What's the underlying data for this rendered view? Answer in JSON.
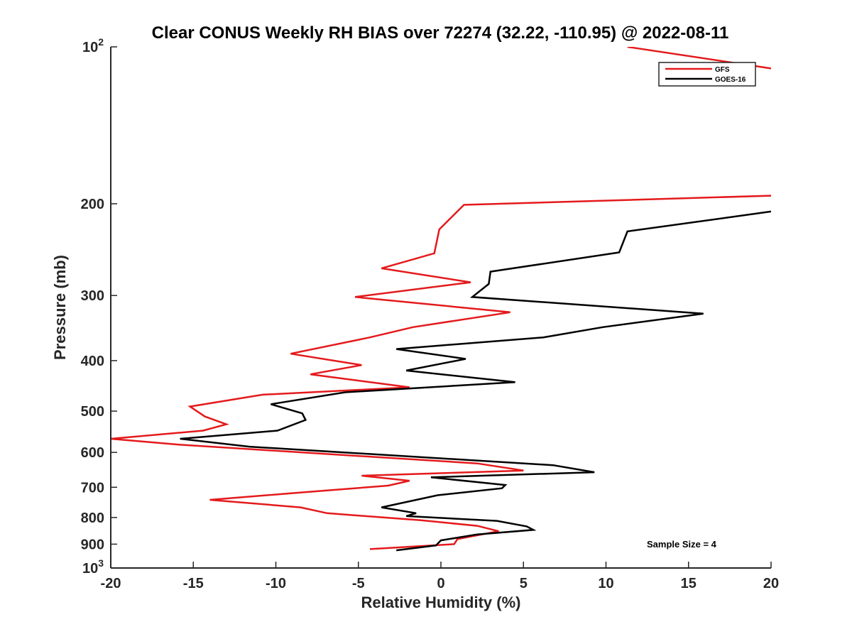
{
  "chart_data": {
    "type": "line",
    "title": "Clear CONUS Weekly RH BIAS over 72274 (32.22, -110.95) @ 2022-08-11",
    "xlabel": "Relative Humidity (%)",
    "ylabel": "Pressure (mb)",
    "xlim": [
      -20,
      20
    ],
    "ylim": [
      100,
      1000
    ],
    "y_scale": "log",
    "y_reversed": true,
    "x_ticks": [
      "-20",
      "-15",
      "-10",
      "-5",
      "0",
      "5",
      "10",
      "15",
      "20"
    ],
    "y_ticks": [
      {
        "value": 100,
        "base": "10",
        "exp": "2"
      },
      {
        "value": 200,
        "label": "200"
      },
      {
        "value": 300,
        "label": "300"
      },
      {
        "value": 400,
        "label": "400"
      },
      {
        "value": 500,
        "label": "500"
      },
      {
        "value": 600,
        "label": "600"
      },
      {
        "value": 700,
        "label": "700"
      },
      {
        "value": 800,
        "label": "800"
      },
      {
        "value": 900,
        "label": "900"
      },
      {
        "value": 1000,
        "base": "10",
        "exp": "3"
      }
    ],
    "grid": false,
    "legend_position": "top-right",
    "annotation": "Sample Size = 4",
    "series": [
      {
        "name": "GFS",
        "color": "#e41a1c",
        "points": [
          [
            -4.3,
            920
          ],
          [
            0.8,
            900
          ],
          [
            1.0,
            880
          ],
          [
            3.5,
            850
          ],
          [
            2.2,
            830
          ],
          [
            -1.2,
            810
          ],
          [
            -6.9,
            785
          ],
          [
            -8.5,
            765
          ],
          [
            -14.0,
            740
          ],
          [
            -8.2,
            715
          ],
          [
            -3.2,
            695
          ],
          [
            -1.9,
            680
          ],
          [
            -4.8,
            665
          ],
          [
            5.0,
            650
          ],
          [
            2.2,
            630
          ],
          [
            -15.8,
            580
          ],
          [
            -20.0,
            565
          ],
          [
            -14.4,
            545
          ],
          [
            -13.0,
            530
          ],
          [
            -14.3,
            512
          ],
          [
            -15.2,
            490
          ],
          [
            -10.8,
            465
          ],
          [
            -1.9,
            450
          ],
          [
            -7.9,
            425
          ],
          [
            -4.8,
            408
          ],
          [
            -9.1,
            388
          ],
          [
            -4.3,
            361
          ],
          [
            -1.7,
            345
          ],
          [
            4.2,
            323
          ],
          [
            -5.2,
            302
          ],
          [
            1.8,
            283
          ],
          [
            -3.6,
            266
          ],
          [
            -0.4,
            249
          ],
          [
            -0.1,
            224
          ],
          [
            1.4,
            201
          ],
          [
            20.0,
            193
          ]
        ],
        "upper_points": [
          [
            11.3,
            100
          ],
          [
            20.0,
            110
          ]
        ]
      },
      {
        "name": "GOES-16",
        "color": "#000000",
        "points": [
          [
            -2.7,
            925
          ],
          [
            -0.3,
            905
          ],
          [
            0.0,
            885
          ],
          [
            2.2,
            862
          ],
          [
            5.6,
            845
          ],
          [
            5.2,
            832
          ],
          [
            3.4,
            812
          ],
          [
            -2.1,
            795
          ],
          [
            -1.5,
            785
          ],
          [
            -3.6,
            765
          ],
          [
            -0.2,
            725
          ],
          [
            3.7,
            703
          ],
          [
            3.9,
            693
          ],
          [
            -0.6,
            670
          ],
          [
            9.3,
            655
          ],
          [
            6.8,
            635
          ],
          [
            -11.6,
            585
          ],
          [
            -15.8,
            565
          ],
          [
            -9.9,
            545
          ],
          [
            -8.2,
            520
          ],
          [
            -8.4,
            505
          ],
          [
            -10.3,
            485
          ],
          [
            -5.8,
            460
          ],
          [
            4.5,
            440
          ],
          [
            -2.1,
            418
          ],
          [
            1.5,
            397
          ],
          [
            -2.7,
            380
          ],
          [
            6.2,
            361
          ],
          [
            9.8,
            345
          ],
          [
            15.9,
            325
          ],
          [
            1.9,
            302
          ],
          [
            2.9,
            285
          ],
          [
            3.0,
            270
          ],
          [
            10.8,
            248
          ],
          [
            11.3,
            226
          ],
          [
            20.0,
            207
          ]
        ]
      }
    ]
  }
}
